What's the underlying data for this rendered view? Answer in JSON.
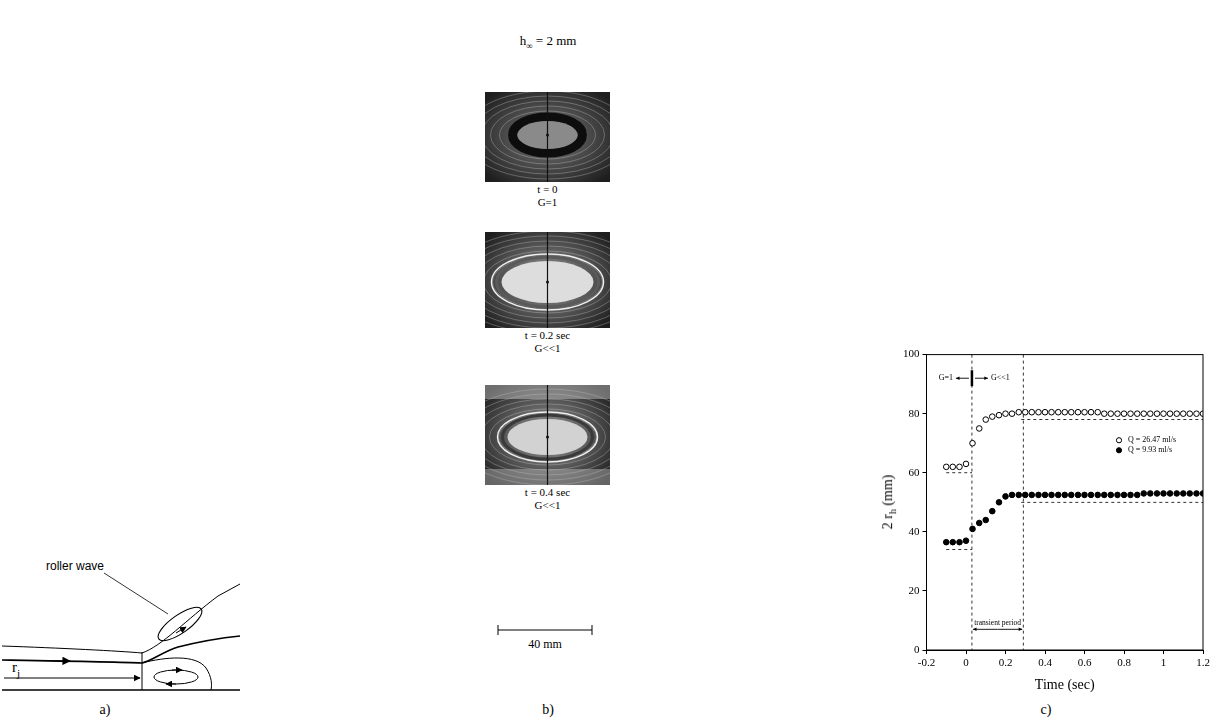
{
  "panels": [
    {
      "label": "a)",
      "roller_label": "roller wave",
      "radius_label": {
        "base": "r",
        "subscript": "j"
      }
    },
    {
      "label": "b)",
      "title": {
        "base": "h",
        "subscript": "∞",
        "rest": " = 2 mm"
      },
      "frames": [
        {
          "time": "t = 0",
          "regime": "G=1"
        },
        {
          "time": "t = 0.2 sec",
          "regime": "G<<1"
        },
        {
          "time": "t = 0.4 sec",
          "regime": "G<<1"
        }
      ],
      "scale_bar": "40 mm"
    }
  ],
  "chart_data": {
    "label": "c)",
    "type": "scatter",
    "xlabel": "Time (sec)",
    "ylabel": {
      "base": "2 r",
      "subscript": "h",
      "rest": " (mm)"
    },
    "x": [
      -0.1,
      -0.067,
      -0.033,
      0,
      0.033,
      0.067,
      0.1,
      0.133,
      0.167,
      0.2,
      0.233,
      0.267,
      0.3,
      0.333,
      0.367,
      0.4,
      0.433,
      0.467,
      0.5,
      0.533,
      0.567,
      0.6,
      0.633,
      0.667,
      0.7,
      0.733,
      0.767,
      0.8,
      0.833,
      0.867,
      0.9,
      0.933,
      0.967,
      1.0,
      1.033,
      1.067,
      1.1,
      1.133,
      1.167,
      1.2
    ],
    "series": [
      {
        "name": "Q = 26.47 ml/s",
        "color": "#000000",
        "marker": "open circle",
        "values": [
          62,
          62,
          62,
          63,
          70,
          75,
          78,
          79,
          79.5,
          80,
          80,
          80.5,
          80.5,
          80.5,
          80.5,
          80.5,
          80.5,
          80.5,
          80.5,
          80.5,
          80.5,
          80.5,
          80.5,
          80.5,
          80,
          80,
          80,
          80,
          80,
          80,
          80,
          80,
          80,
          80,
          80,
          80,
          80,
          80,
          80,
          80
        ]
      },
      {
        "name": "Q = 9.93 ml/s",
        "color": "#000000",
        "marker": "filled circle",
        "values": [
          36.5,
          36.5,
          36.5,
          37,
          41,
          43,
          44,
          47,
          50,
          52,
          52.5,
          52.5,
          52.5,
          52.5,
          52.5,
          52.5,
          52.5,
          52.5,
          52.5,
          52.5,
          52.5,
          52.5,
          52.5,
          52.5,
          52.5,
          52.5,
          52.5,
          52.5,
          52.5,
          52.5,
          53,
          53,
          53,
          53,
          53,
          53,
          53,
          53,
          53,
          53
        ]
      }
    ],
    "xlim": [
      -0.2,
      1.2
    ],
    "xticks": [
      -0.2,
      0,
      0.2,
      0.4,
      0.6,
      0.8,
      1,
      1.2
    ],
    "ylim": [
      0,
      100
    ],
    "yticks": [
      0,
      20,
      40,
      60,
      80,
      100
    ],
    "grid": false,
    "legend": "right",
    "regime_marker": {
      "x": 0.03,
      "y": 92,
      "left": "G=1",
      "right": "G<<1"
    },
    "transient": {
      "text": "transient period",
      "x": [
        0.03,
        0.29
      ],
      "y": 7
    },
    "vlines": [
      0.03,
      0.29
    ],
    "hlines": [
      {
        "y": 60,
        "x": [
          -0.1,
          0.03
        ]
      },
      {
        "y": 78,
        "x": [
          0.28,
          1.2
        ]
      },
      {
        "y": 34,
        "x": [
          -0.1,
          0.03
        ]
      },
      {
        "y": 50,
        "x": [
          0.28,
          1.2
        ]
      }
    ]
  }
}
